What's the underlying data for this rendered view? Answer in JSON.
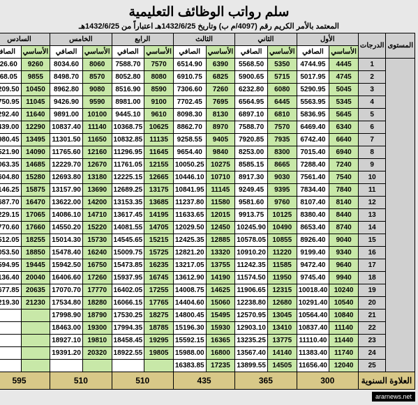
{
  "title": "سلم رواتب الوظائف التعليمية",
  "subtitle": "المعتمد بالأمر الكريم رقم (4097/م ب) وتاريخ 1432/6/25هـ اعتباراً من 1432/6/25هـ",
  "headers": {
    "level": "المستوى",
    "grade": "الدرجات",
    "basic": "الأساسي",
    "net": "الصافي",
    "levels": [
      "الأول",
      "الثاني",
      "الثالث",
      "الرابع",
      "الخامس",
      "السادس"
    ]
  },
  "rows": [
    {
      "g": "1",
      "d": [
        "4445",
        "4744.95",
        "5350",
        "5568.50",
        "6390",
        "6514.90",
        "7570",
        "7588.70",
        "8060",
        "8034.60",
        "9260",
        "9126.60"
      ]
    },
    {
      "g": "2",
      "d": [
        "4745",
        "5017.95",
        "5715",
        "5900.65",
        "6825",
        "6910.75",
        "8080",
        "8052.80",
        "8570",
        "8498.70",
        "9855",
        "9668.05"
      ]
    },
    {
      "g": "3",
      "d": [
        "5045",
        "5290.95",
        "6080",
        "6232.80",
        "7260",
        "7306.60",
        "8590",
        "8516.90",
        "9080",
        "8962.80",
        "10450",
        "10209.50"
      ]
    },
    {
      "g": "4",
      "d": [
        "5345",
        "5563.95",
        "6445",
        "6564.95",
        "7695",
        "7702.45",
        "9100",
        "8981.00",
        "9590",
        "9426.90",
        "11045",
        "10750.95"
      ]
    },
    {
      "g": "5",
      "d": [
        "5645",
        "5836.95",
        "6810",
        "6897.10",
        "8130",
        "8098.30",
        "9610",
        "9445.10",
        "10100",
        "9891.00",
        "11640",
        "11292.40"
      ]
    },
    {
      "g": "6",
      "d": [
        "6340",
        "6469.40",
        "7570",
        "7588.70",
        "8970",
        "8862.70",
        "10625",
        "10368.75",
        "11140",
        "10837.40",
        "12290",
        "11439.00"
      ]
    },
    {
      "g": "7",
      "d": [
        "6640",
        "6742.40",
        "7935",
        "7920.85",
        "9405",
        "9258.55",
        "11135",
        "10832.85",
        "11650",
        "11301.50",
        "13495",
        "12980.45"
      ]
    },
    {
      "g": "8",
      "d": [
        "6940",
        "7015.40",
        "8300",
        "8253.00",
        "9840",
        "9654.40",
        "11645",
        "11296.95",
        "12160",
        "11765.60",
        "14090",
        "13521.90"
      ]
    },
    {
      "g": "9",
      "d": [
        "7240",
        "7288.40",
        "8665",
        "8585.15",
        "10275",
        "10050.25",
        "12155",
        "11761.05",
        "12670",
        "12229.70",
        "14685",
        "14063.35"
      ]
    },
    {
      "g": "10",
      "d": [
        "7540",
        "7561.40",
        "9030",
        "8917.30",
        "10710",
        "10446.10",
        "12665",
        "12225.15",
        "13180",
        "12693.80",
        "15280",
        "14604.80"
      ]
    },
    {
      "g": "11",
      "d": [
        "7840",
        "7834.40",
        "9395",
        "9249.45",
        "11145",
        "10841.95",
        "13175",
        "12689.25",
        "13690",
        "13157.90",
        "15875",
        "15146.25"
      ]
    },
    {
      "g": "12",
      "d": [
        "8140",
        "8107.40",
        "9760",
        "9581.60",
        "11580",
        "11237.80",
        "13685",
        "13153.35",
        "14200",
        "13622.00",
        "16470",
        "15687.70"
      ]
    },
    {
      "g": "13",
      "d": [
        "8440",
        "8380.40",
        "10125",
        "9913.75",
        "12015",
        "11633.65",
        "14195",
        "13617.45",
        "14710",
        "14086.10",
        "17065",
        "16229.15"
      ]
    },
    {
      "g": "14",
      "d": [
        "8740",
        "8653.40",
        "10490",
        "10245.90",
        "12450",
        "12029.50",
        "14705",
        "14081.55",
        "15220",
        "14550.20",
        "17660",
        "16770.60"
      ]
    },
    {
      "g": "15",
      "d": [
        "9040",
        "8926.40",
        "10855",
        "10578.05",
        "12885",
        "12425.35",
        "15215",
        "14545.65",
        "15730",
        "15014.30",
        "18255",
        "17512.05"
      ]
    },
    {
      "g": "16",
      "d": [
        "9340",
        "9199.40",
        "11220",
        "10910.20",
        "13320",
        "12821.20",
        "15725",
        "15009.75",
        "16240",
        "15478.40",
        "18850",
        "18053.50"
      ]
    },
    {
      "g": "17",
      "d": [
        "9640",
        "9472.40",
        "11585",
        "11242.35",
        "13755",
        "13217.05",
        "16235",
        "15473.85",
        "16750",
        "15942.50",
        "19445",
        "18594.95"
      ]
    },
    {
      "g": "18",
      "d": [
        "9940",
        "9745.40",
        "11950",
        "11574.50",
        "14190",
        "13612.90",
        "16745",
        "15937.95",
        "17260",
        "16406.60",
        "20040",
        "19136.40"
      ]
    },
    {
      "g": "19",
      "d": [
        "10240",
        "10018.40",
        "12315",
        "11906.65",
        "14625",
        "14008.75",
        "17255",
        "16402.05",
        "17770",
        "17070.70",
        "20635",
        "19677.85"
      ]
    },
    {
      "g": "20",
      "d": [
        "10540",
        "10291.40",
        "12680",
        "12238.80",
        "15060",
        "14404.60",
        "17765",
        "16066.15",
        "18280",
        "17534.80",
        "21230",
        "20219.30"
      ]
    },
    {
      "g": "21",
      "d": [
        "10840",
        "10564.40",
        "13045",
        "12570.95",
        "15495",
        "14800.45",
        "18275",
        "17530.25",
        "18790",
        "17998.90",
        "",
        ""
      ]
    },
    {
      "g": "22",
      "d": [
        "11140",
        "10837.40",
        "13410",
        "12903.10",
        "15930",
        "15196.30",
        "18785",
        "17994.35",
        "19300",
        "18463.00",
        "",
        ""
      ]
    },
    {
      "g": "23",
      "d": [
        "11440",
        "11110.40",
        "13775",
        "13235.25",
        "16365",
        "15592.15",
        "19295",
        "18458.45",
        "19810",
        "18927.10",
        "",
        ""
      ]
    },
    {
      "g": "24",
      "d": [
        "11740",
        "11383.40",
        "14140",
        "13567.40",
        "16800",
        "15988.00",
        "19805",
        "18922.55",
        "20320",
        "19391.20",
        "",
        ""
      ]
    },
    {
      "g": "25",
      "d": [
        "12040",
        "11656.40",
        "14505",
        "13899.55",
        "17235",
        "16383.85",
        "",
        "",
        "",
        "",
        "",
        ""
      ]
    }
  ],
  "footer": {
    "label": "العلاوة السنوية",
    "values": [
      "300",
      "365",
      "435",
      "510",
      "510",
      "595"
    ]
  },
  "watermark": "ararnews.net"
}
